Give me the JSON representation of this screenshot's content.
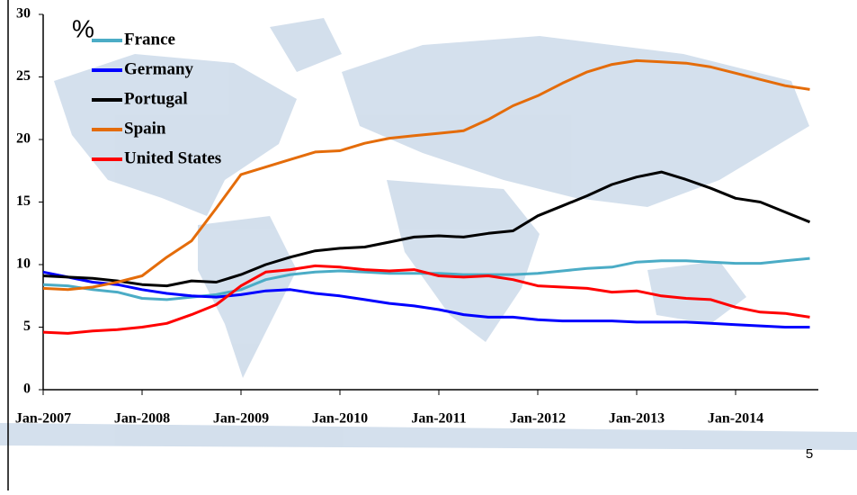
{
  "chart_data": {
    "type": "line",
    "y_unit": "%",
    "x": [
      "Jan-2007",
      "Apr-2007",
      "Jul-2007",
      "Oct-2007",
      "Jan-2008",
      "Apr-2008",
      "Jul-2008",
      "Oct-2008",
      "Jan-2009",
      "Apr-2009",
      "Jul-2009",
      "Oct-2009",
      "Jan-2010",
      "Apr-2010",
      "Jul-2010",
      "Oct-2010",
      "Jan-2011",
      "Apr-2011",
      "Jul-2011",
      "Oct-2011",
      "Jan-2012",
      "Apr-2012",
      "Jul-2012",
      "Oct-2012",
      "Jan-2013",
      "Apr-2013",
      "Jul-2013",
      "Oct-2013",
      "Jan-2014",
      "Apr-2014",
      "Jul-2014",
      "Oct-2014"
    ],
    "series": [
      {
        "name": "France",
        "color": "#4bacc6",
        "values": [
          8.4,
          8.3,
          8.0,
          7.8,
          7.3,
          7.2,
          7.4,
          7.6,
          8.0,
          8.8,
          9.2,
          9.4,
          9.5,
          9.4,
          9.3,
          9.3,
          9.3,
          9.2,
          9.2,
          9.2,
          9.3,
          9.5,
          9.7,
          9.8,
          10.2,
          10.3,
          10.3,
          10.2,
          10.1,
          10.1,
          10.3,
          10.5
        ]
      },
      {
        "name": "Germany",
        "color": "#0000ff",
        "values": [
          9.4,
          9.0,
          8.6,
          8.4,
          8.0,
          7.7,
          7.5,
          7.4,
          7.6,
          7.9,
          8.0,
          7.7,
          7.5,
          7.2,
          6.9,
          6.7,
          6.4,
          6.0,
          5.8,
          5.8,
          5.6,
          5.5,
          5.5,
          5.5,
          5.4,
          5.4,
          5.4,
          5.3,
          5.2,
          5.1,
          5.0,
          5.0
        ]
      },
      {
        "name": "Portugal",
        "color": "#000000",
        "values": [
          9.1,
          9.0,
          8.9,
          8.7,
          8.4,
          8.3,
          8.7,
          8.6,
          9.2,
          10.0,
          10.6,
          11.1,
          11.3,
          11.4,
          11.8,
          12.2,
          12.3,
          12.2,
          12.5,
          12.7,
          13.9,
          14.7,
          15.5,
          16.4,
          17.0,
          17.4,
          16.8,
          16.1,
          15.3,
          15.0,
          14.2,
          13.4
        ]
      },
      {
        "name": "Spain",
        "color": "#e46c0a",
        "values": [
          8.1,
          8.0,
          8.2,
          8.6,
          9.1,
          10.6,
          11.9,
          14.5,
          17.2,
          17.8,
          18.4,
          19.0,
          19.1,
          19.7,
          20.1,
          20.3,
          20.5,
          20.7,
          21.6,
          22.7,
          23.5,
          24.5,
          25.4,
          26.0,
          26.3,
          26.2,
          26.1,
          25.8,
          25.3,
          24.8,
          24.3,
          24.0
        ]
      },
      {
        "name": "United States",
        "color": "#ff0000",
        "values": [
          4.6,
          4.5,
          4.7,
          4.8,
          5.0,
          5.3,
          6.0,
          6.8,
          8.3,
          9.4,
          9.6,
          9.9,
          9.8,
          9.6,
          9.5,
          9.6,
          9.1,
          9.0,
          9.1,
          8.8,
          8.3,
          8.2,
          8.1,
          7.8,
          7.9,
          7.5,
          7.3,
          7.2,
          6.6,
          6.2,
          6.1,
          5.8
        ]
      }
    ],
    "xticks": [
      "Jan-2007",
      "Jan-2008",
      "Jan-2009",
      "Jan-2010",
      "Jan-2011",
      "Jan-2012",
      "Jan-2013",
      "Jan-2014"
    ],
    "ylim": [
      0,
      30
    ],
    "yticks": [
      0,
      5,
      10,
      15,
      20,
      25,
      30
    ]
  },
  "footer": {
    "page_number": "5"
  }
}
